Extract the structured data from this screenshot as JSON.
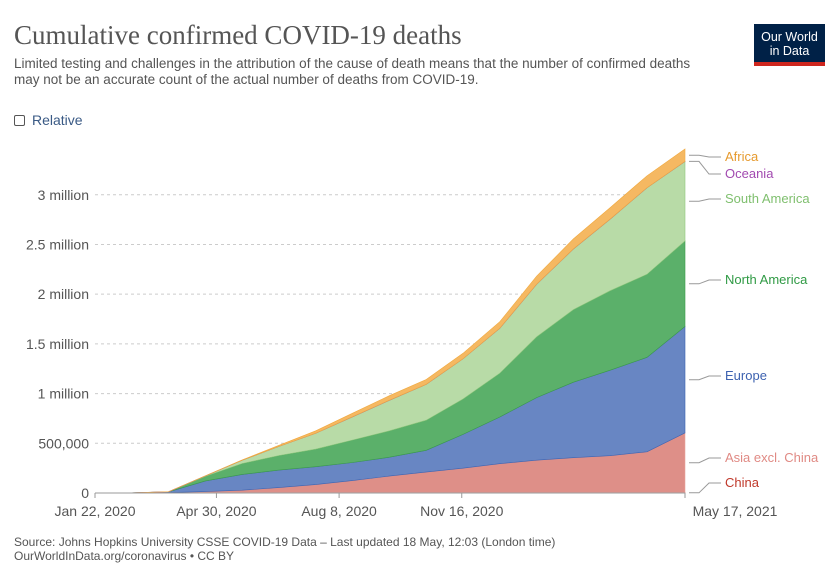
{
  "header": {
    "title": "Cumulative confirmed COVID-19 deaths",
    "subtitle": "Limited testing and challenges in the attribution of the cause of death means that the number of confirmed deaths may not be an accurate count of the actual number of deaths from COVID-19."
  },
  "logo": {
    "line1": "Our World",
    "line2": "in Data"
  },
  "controls": {
    "relative_label": "Relative",
    "relative_checked": false
  },
  "footer": {
    "source": "Source: Johns Hopkins University CSSE COVID-19 Data – Last updated 18 May, 12:03 (London time)",
    "url": "OurWorldInData.org/coronavirus • CC BY"
  },
  "chart_data": {
    "type": "area",
    "stacked": true,
    "title": "Cumulative confirmed COVID-19 deaths",
    "x": [
      "2020-01-22",
      "2020-02-21",
      "2020-03-22",
      "2020-04-21",
      "2020-05-21",
      "2020-06-20",
      "2020-07-20",
      "2020-08-19",
      "2020-09-18",
      "2020-10-18",
      "2020-11-17",
      "2020-12-17",
      "2021-01-16",
      "2021-02-15",
      "2021-03-17",
      "2021-04-16",
      "2021-05-17"
    ],
    "x_tick_labels": [
      "Jan 22, 2020",
      "Apr 30, 2020",
      "Aug 8, 2020",
      "Nov 16, 2020",
      "May 17, 2021"
    ],
    "x_tick_dates": [
      "2020-01-22",
      "2020-04-30",
      "2020-08-08",
      "2020-11-16",
      "2021-05-17"
    ],
    "y_tick_labels": [
      "0",
      "500,000",
      "1 million",
      "1.5 million",
      "2 million",
      "2.5 million",
      "3 million"
    ],
    "y_tick_values": [
      0,
      500000,
      1000000,
      1500000,
      2000000,
      2500000,
      3000000
    ],
    "ylim": [
      0,
      3400000
    ],
    "grid": true,
    "series": [
      {
        "name": "China",
        "color": "#c0392b",
        "fill": "#c0392b",
        "values": [
          17,
          2250,
          3270,
          4640,
          4640,
          4650,
          4650,
          4700,
          4740,
          4740,
          4740,
          4760,
          4800,
          4840,
          4840,
          4850,
          4850
        ]
      },
      {
        "name": "Asia excl. China",
        "color": "#e8a49e",
        "fill": "#de8f88",
        "values": [
          0,
          30,
          800,
          9000,
          24000,
          50000,
          80000,
          120000,
          165000,
          205000,
          245000,
          290000,
          325000,
          350000,
          370000,
          410000,
          600000
        ]
      },
      {
        "name": "Europe",
        "color": "#3d62b0",
        "fill": "#6886c3",
        "values": [
          0,
          0,
          8000,
          108000,
          158000,
          176000,
          180000,
          182000,
          190000,
          220000,
          340000,
          470000,
          630000,
          760000,
          860000,
          950000,
          1070000
        ]
      },
      {
        "name": "North America",
        "color": "#3a9c48",
        "fill": "#5bb06a",
        "values": [
          0,
          0,
          400,
          46000,
          110000,
          147000,
          177000,
          226000,
          266000,
          303000,
          356000,
          440000,
          610000,
          730000,
          800000,
          835000,
          860000
        ]
      },
      {
        "name": "South America",
        "color": "#8fc77e",
        "fill": "#b8dba7",
        "values": [
          0,
          0,
          100,
          4000,
          33000,
          91000,
          160000,
          234000,
          307000,
          360000,
          404000,
          452000,
          530000,
          610000,
          720000,
          870000,
          800000
        ]
      },
      {
        "name": "Oceania",
        "color": "#a24ab0",
        "fill": "#b867c0",
        "values": [
          0,
          0,
          15,
          95,
          130,
          130,
          170,
          550,
          900,
          930,
          940,
          950,
          950,
          960,
          970,
          980,
          1000
        ]
      },
      {
        "name": "Africa",
        "color": "#f0a93e",
        "fill": "#f5b862",
        "values": [
          0,
          0,
          60,
          1200,
          3500,
          11000,
          24000,
          35000,
          45000,
          48000,
          55000,
          65000,
          80000,
          100000,
          115000,
          120000,
          125000
        ]
      }
    ],
    "legend": {
      "placement": "right, at end of each area",
      "order_top_to_bottom": [
        "Africa",
        "Oceania",
        "South America",
        "North America",
        "Europe",
        "Asia excl. China",
        "China"
      ]
    }
  }
}
